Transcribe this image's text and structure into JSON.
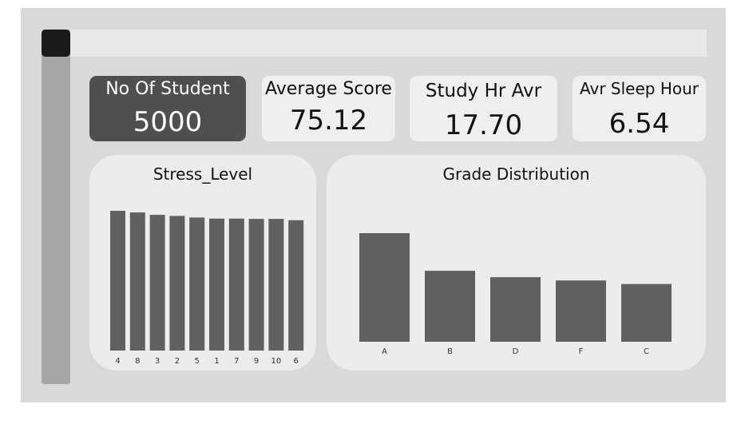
{
  "kpis": {
    "students": {
      "label": "No Of Student",
      "value": "5000"
    },
    "avg_score": {
      "label": "Average Score",
      "value": "75.12"
    },
    "study_hr": {
      "label": "Study Hr Avr",
      "value": "17.70"
    },
    "sleep_hr": {
      "label": "Avr Sleep Hour",
      "value": "6.54"
    }
  },
  "colors": {
    "bar": "#606060",
    "dark_card": "#4f4f4f",
    "panel": "#ececec"
  },
  "chart_data": [
    {
      "type": "bar",
      "title": "Stress_Level",
      "categories": [
        "4",
        "8",
        "3",
        "2",
        "5",
        "1",
        "7",
        "9",
        "10",
        "6"
      ],
      "values": [
        520,
        514,
        505,
        501,
        495,
        491,
        491,
        490,
        490,
        485
      ],
      "ylim": [
        0,
        520
      ]
    },
    {
      "type": "bar",
      "title": "Grade Distribution",
      "categories": [
        "A",
        "B",
        "D",
        "F",
        "C"
      ],
      "values": [
        1495,
        977,
        889,
        844,
        795
      ],
      "ylim": [
        0,
        1495
      ]
    }
  ]
}
